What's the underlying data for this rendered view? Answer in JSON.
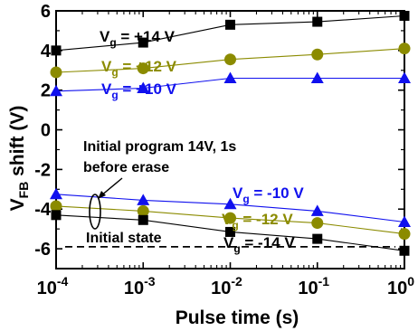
{
  "chart_data": {
    "type": "scatter",
    "xlabel": "Pulse time (s)",
    "ylabel_main": "V",
    "ylabel_sub": "FB",
    "ylabel_rest": " shift (V)",
    "xscale": "log",
    "xlim": [
      0.0001,
      1
    ],
    "ylim": [
      -7,
      6
    ],
    "x_ticks": [
      {
        "base": "10",
        "exp": "-4",
        "value": 0.0001
      },
      {
        "base": "10",
        "exp": "-3",
        "value": 0.001
      },
      {
        "base": "10",
        "exp": "-2",
        "value": 0.01
      },
      {
        "base": "10",
        "exp": "-1",
        "value": 0.1
      },
      {
        "base": "10",
        "exp": "0",
        "value": 1
      }
    ],
    "y_ticks": [
      -6,
      -4,
      -2,
      0,
      2,
      4,
      6
    ],
    "x": [
      0.0001,
      0.001,
      0.01,
      0.1,
      1
    ],
    "series": [
      {
        "label_pre": "V",
        "label_sub": "g",
        "label_post": " = +14 V",
        "color": "#000000",
        "marker": "square",
        "values": [
          4.0,
          4.4,
          5.3,
          5.45,
          5.75
        ]
      },
      {
        "label_pre": "V",
        "label_sub": "g",
        "label_post": " = +12 V",
        "color": "#8b8b00",
        "marker": "circle",
        "values": [
          2.9,
          3.1,
          3.55,
          3.8,
          4.1
        ]
      },
      {
        "label_pre": "V",
        "label_sub": "g",
        "label_post": " = +10 V",
        "color": "#1010ee",
        "marker": "triangle",
        "values": [
          1.95,
          2.1,
          2.6,
          2.6,
          2.6
        ]
      },
      {
        "label_pre": "V",
        "label_sub": "g",
        "label_post": " = -10 V",
        "color": "#1010ee",
        "marker": "triangle",
        "values": [
          -3.25,
          -3.55,
          -3.75,
          -4.1,
          -4.65
        ]
      },
      {
        "label_pre": "V",
        "label_sub": "g",
        "label_post": " = -12 V",
        "color": "#8b8b00",
        "marker": "circle",
        "values": [
          -3.85,
          -4.1,
          -4.45,
          -4.7,
          -5.25
        ]
      },
      {
        "label_pre": "V",
        "label_sub": "g",
        "label_post": " = -14 V",
        "color": "#000000",
        "marker": "square",
        "values": [
          -4.3,
          -4.55,
          -5.15,
          -5.5,
          -6.1
        ]
      }
    ],
    "reference_line": {
      "label": "Initial state",
      "y": -5.9,
      "style": "dashed",
      "color": "#000000"
    },
    "annotation": {
      "line1": "Initial program 14V, 1s",
      "line2": "before erase"
    }
  }
}
